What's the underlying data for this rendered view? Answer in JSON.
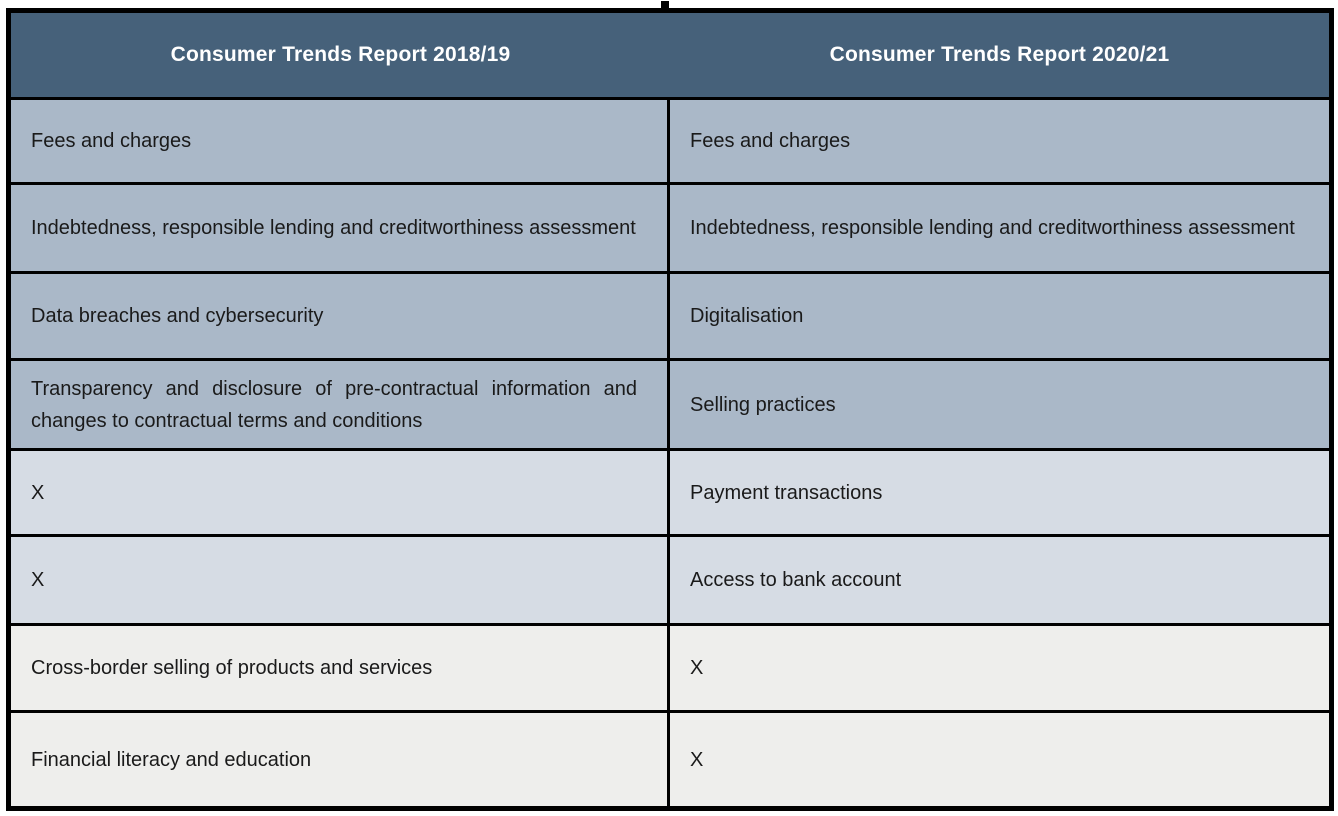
{
  "table": {
    "columns": [
      {
        "header": "Consumer Trends Report 2018/19"
      },
      {
        "header": "Consumer Trends Report 2020/21"
      }
    ],
    "rows": [
      {
        "left": "Fees and charges",
        "right": "Fees and charges",
        "shade": "dark"
      },
      {
        "left": "Indebtedness, responsible lending and creditworthiness assessment",
        "right": "Indebtedness, responsible lending and creditworthiness assessment",
        "shade": "dark"
      },
      {
        "left": "Data breaches and cybersecurity",
        "right": "Digitalisation",
        "shade": "dark"
      },
      {
        "left": "Transparency and disclosure of pre-contractual information and changes to contractual terms and conditions",
        "right": "Selling practices",
        "shade": "dark"
      },
      {
        "left": "X",
        "right": "Payment transactions",
        "shade": "medium"
      },
      {
        "left": "X",
        "right": "Access to bank account",
        "shade": "medium"
      },
      {
        "left": "Cross-border selling of products and services",
        "right": "X",
        "shade": "light"
      },
      {
        "left": "Financial literacy and education",
        "right": "X",
        "shade": "light"
      }
    ],
    "colors": {
      "header_bg": "#46617a",
      "header_text": "#ffffff",
      "row_dark_bg": "#aab8c8",
      "row_medium_bg": "#d6dce4",
      "row_light_bg": "#eeeeec",
      "border": "#000000",
      "body_text": "#1a1a1a"
    }
  }
}
